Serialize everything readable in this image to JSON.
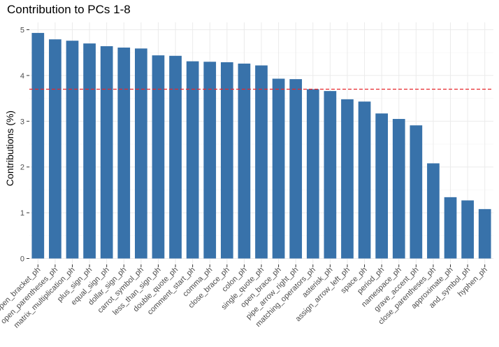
{
  "chart_data": {
    "type": "bar",
    "title": "Contribution to PCs 1-8",
    "xlabel": "",
    "ylabel": "Contributions (%)",
    "ylim": [
      0,
      5.15
    ],
    "yticks": [
      0,
      1,
      2,
      3,
      4,
      5
    ],
    "grid": true,
    "bar_color": "#3872aa",
    "reference_line": {
      "value": 3.7,
      "color": "#e8262c",
      "style": "dashed"
    },
    "categories": [
      "open_bracket_ph",
      "open_parentheses_ph",
      "matrix_multiplication_ph",
      "plus_sign_ph",
      "equal_sign_ph",
      "dollar_sign_ph",
      "carrot_symbol_ph",
      "less_than_sign_ph",
      "double_quote_ph",
      "comment_start_ph",
      "comma_ph",
      "close_brace_ph",
      "colon_ph",
      "single_quote_ph",
      "open_brace_ph",
      "pipe_arrow_right_ph",
      "matching_operators_ph",
      "asterisk_ph",
      "assign_arrow_left_ph",
      "space_ph",
      "period_ph",
      "namespace_ph",
      "grave_accent_ph",
      "close_parentheses_ph",
      "approximate_ph",
      "and_symbol_ph",
      "hyphen_ph"
    ],
    "values": [
      4.93,
      4.79,
      4.76,
      4.7,
      4.64,
      4.61,
      4.59,
      4.44,
      4.43,
      4.31,
      4.3,
      4.29,
      4.26,
      4.22,
      3.93,
      3.92,
      3.7,
      3.66,
      3.48,
      3.43,
      3.17,
      3.05,
      2.91,
      2.08,
      1.34,
      1.27,
      1.08
    ]
  }
}
